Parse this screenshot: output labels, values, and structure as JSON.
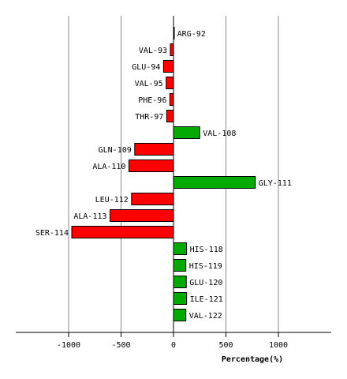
{
  "chart_data": {
    "type": "bar",
    "orientation": "horizontal",
    "xlabel": "Percentage(%)",
    "xlim": [
      -1500,
      1500
    ],
    "xticks": [
      -1000,
      -500,
      0,
      500,
      1000
    ],
    "grid": true,
    "colors": {
      "positive": "#00aa00",
      "negative": "#ff0000"
    },
    "categories": [
      "ARG-92",
      "VAL-93",
      "GLU-94",
      "VAL-95",
      "PHE-96",
      "THR-97",
      "VAL-108",
      "GLN-109",
      "ALA-110",
      "GLY-111",
      "LEU-112",
      "ALA-113",
      "SER-114",
      "HIS-118",
      "HIS-119",
      "GLU-120",
      "ILE-121",
      "VAL-122"
    ],
    "values": [
      5,
      -30,
      -95,
      -70,
      -35,
      -65,
      250,
      -370,
      -425,
      780,
      -400,
      -605,
      -970,
      125,
      118,
      122,
      125,
      118
    ]
  }
}
